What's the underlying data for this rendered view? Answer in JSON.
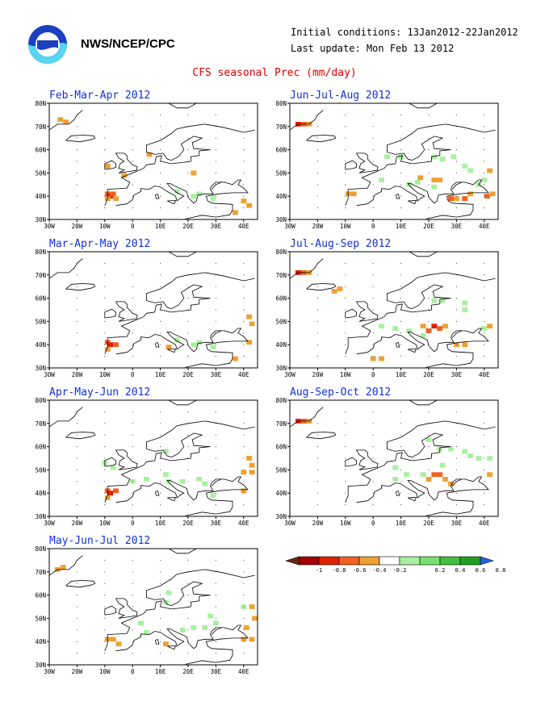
{
  "header": {
    "agency": "NWS/NCEP/CPC",
    "initial_conditions": "Initial conditions: 13Jan2012-22Jan2012",
    "last_update": "Last update: Mon Feb 13 2012",
    "title": "CFS seasonal Prec (mm/day)"
  },
  "colors": {
    "title": "#e00000",
    "panel_title": "#1030e0",
    "negative": [
      "#6b2a0c",
      "#a00000",
      "#e02000",
      "#f06020",
      "#f0a030"
    ],
    "positive": [
      "#a8f0a0",
      "#78e070",
      "#40c040",
      "#20a020",
      "#2060e0"
    ]
  },
  "chart_data": {
    "type": "heatmap",
    "variable": "Precipitation anomaly (mm/day)",
    "region": {
      "lon_range": [
        -30,
        45
      ],
      "lat_range": [
        30,
        80
      ],
      "x_tick_labels": [
        "30W",
        "20W",
        "10W",
        "0",
        "10E",
        "20E",
        "30E",
        "40E"
      ],
      "y_tick_labels": [
        "30N",
        "40N",
        "50N",
        "60N",
        "70N",
        "80N"
      ]
    },
    "colorbar": {
      "levels": [
        -1,
        -0.8,
        -0.6,
        -0.4,
        -0.2,
        0.2,
        0.4,
        0.6,
        0.8,
        1
      ],
      "labels": [
        "-1",
        "-0.8",
        "-0.6",
        "-0.4",
        "-0.2",
        "0.2",
        "0.4",
        "0.6",
        "0.8",
        "1"
      ]
    },
    "panels": [
      {
        "title": "Feb-Mar-Apr 2012",
        "column": 0,
        "row": 0,
        "cells": [
          [
            -26,
            73,
            "-0.3"
          ],
          [
            -24,
            72,
            "-0.3"
          ],
          [
            -9,
            41,
            "-0.5"
          ],
          [
            -8,
            40,
            "-0.7"
          ],
          [
            -7,
            41,
            "-0.5"
          ],
          [
            -9,
            39,
            "-0.3"
          ],
          [
            -6,
            39,
            "-0.3"
          ],
          [
            -9,
            53,
            "-0.3"
          ],
          [
            -3,
            49,
            "-0.3"
          ],
          [
            6,
            58,
            "-0.3"
          ],
          [
            22,
            50,
            "-0.3"
          ],
          [
            40,
            38,
            "-0.3"
          ],
          [
            42,
            36,
            "-0.3"
          ],
          [
            37,
            33,
            "-0.3"
          ],
          [
            22,
            40,
            "0.3"
          ],
          [
            24,
            41,
            "0.3"
          ],
          [
            29,
            39,
            "0.3"
          ],
          [
            16,
            42,
            "0.3"
          ]
        ]
      },
      {
        "title": "Jun-Jul-Aug 2012",
        "column": 1,
        "row": 0,
        "cells": [
          [
            -27,
            71,
            "-0.7"
          ],
          [
            -25,
            71,
            "-0.5"
          ],
          [
            -23,
            71,
            "-0.3"
          ],
          [
            -9,
            41,
            "-0.3"
          ],
          [
            -7,
            41,
            "-0.3"
          ],
          [
            28,
            39,
            "-0.5"
          ],
          [
            30,
            39,
            "-0.3"
          ],
          [
            33,
            39,
            "-0.5"
          ],
          [
            35,
            41,
            "-0.3"
          ],
          [
            41,
            40,
            "-0.5"
          ],
          [
            43,
            41,
            "-0.3"
          ],
          [
            42,
            51,
            "-0.3"
          ],
          [
            22,
            47,
            "-0.3"
          ],
          [
            24,
            47,
            "-0.3"
          ],
          [
            17,
            48,
            "-0.3"
          ],
          [
            5,
            57,
            "0.3"
          ],
          [
            10,
            57,
            "0.3"
          ],
          [
            22,
            57,
            "0.3"
          ],
          [
            25,
            56,
            "0.3"
          ],
          [
            29,
            57,
            "0.3"
          ],
          [
            33,
            53,
            "0.3"
          ],
          [
            35,
            51,
            "0.3"
          ],
          [
            3,
            47,
            "0.3"
          ],
          [
            13,
            45,
            "0.3"
          ],
          [
            16,
            46,
            "0.3"
          ],
          [
            22,
            44,
            "0.3"
          ],
          [
            40,
            47,
            "0.3"
          ],
          [
            38,
            45,
            "0.3"
          ]
        ]
      },
      {
        "title": "Mar-Apr-May 2012",
        "column": 0,
        "row": 1,
        "cells": [
          [
            -9,
            41,
            "-0.5"
          ],
          [
            -8,
            40,
            "-0.7"
          ],
          [
            -6,
            40,
            "-0.5"
          ],
          [
            -9,
            38,
            "-0.3"
          ],
          [
            13,
            39,
            "-0.3"
          ],
          [
            42,
            52,
            "-0.3"
          ],
          [
            43,
            49,
            "-0.3"
          ],
          [
            42,
            41,
            "-0.3"
          ],
          [
            37,
            34,
            "-0.3"
          ],
          [
            22,
            40,
            "0.3"
          ],
          [
            24,
            41,
            "0.3"
          ],
          [
            29,
            39,
            "0.3"
          ],
          [
            16,
            42,
            "0.3"
          ]
        ]
      },
      {
        "title": "Jul-Aug-Sep 2012",
        "column": 1,
        "row": 1,
        "cells": [
          [
            -27,
            71,
            "-0.7"
          ],
          [
            -25,
            71,
            "-0.5"
          ],
          [
            -23,
            71,
            "-0.3"
          ],
          [
            -14,
            63,
            "-0.3"
          ],
          [
            -12,
            64,
            "-0.3"
          ],
          [
            22,
            48,
            "-0.7"
          ],
          [
            24,
            47,
            "-0.5"
          ],
          [
            20,
            46,
            "-0.5"
          ],
          [
            26,
            48,
            "-0.3"
          ],
          [
            18,
            48,
            "-0.3"
          ],
          [
            30,
            40,
            "-0.3"
          ],
          [
            33,
            40,
            "-0.3"
          ],
          [
            42,
            48,
            "-0.3"
          ],
          [
            3,
            34,
            "-0.3"
          ],
          [
            0,
            34,
            "-0.3"
          ],
          [
            22,
            59,
            "0.3"
          ],
          [
            25,
            59,
            "0.3"
          ],
          [
            33,
            58,
            "0.3"
          ],
          [
            33,
            55,
            "0.3"
          ],
          [
            3,
            48,
            "0.3"
          ],
          [
            8,
            47,
            "0.3"
          ],
          [
            13,
            46,
            "0.3"
          ],
          [
            18,
            44,
            "0.3"
          ],
          [
            40,
            47,
            "0.3"
          ]
        ]
      },
      {
        "title": "Apr-May-Jun 2012",
        "column": 0,
        "row": 2,
        "cells": [
          [
            -9,
            41,
            "-0.5"
          ],
          [
            -8,
            40,
            "-0.7"
          ],
          [
            -6,
            41,
            "-0.5"
          ],
          [
            -9,
            38,
            "-0.3"
          ],
          [
            42,
            55,
            "-0.3"
          ],
          [
            43,
            52,
            "-0.3"
          ],
          [
            40,
            49,
            "-0.3"
          ],
          [
            43,
            49,
            "-0.3"
          ],
          [
            40,
            41,
            "-0.3"
          ],
          [
            12,
            58,
            "0.3"
          ],
          [
            -10,
            53,
            "0.3"
          ],
          [
            -7,
            51,
            "0.3"
          ],
          [
            0,
            45,
            "0.3"
          ],
          [
            5,
            46,
            "0.3"
          ],
          [
            12,
            48,
            "0.3"
          ],
          [
            13,
            45,
            "0.3"
          ],
          [
            18,
            45,
            "0.3"
          ],
          [
            26,
            44,
            "0.3"
          ],
          [
            29,
            39,
            "0.3"
          ],
          [
            24,
            46,
            "0.3"
          ]
        ]
      },
      {
        "title": "Aug-Sep-Oct 2012",
        "column": 1,
        "row": 2,
        "cells": [
          [
            -27,
            71,
            "-0.7"
          ],
          [
            -25,
            71,
            "-0.5"
          ],
          [
            -23,
            71,
            "-0.3"
          ],
          [
            22,
            48,
            "-0.5"
          ],
          [
            24,
            48,
            "-0.5"
          ],
          [
            20,
            46,
            "-0.3"
          ],
          [
            26,
            46,
            "-0.3"
          ],
          [
            42,
            48,
            "-0.3"
          ],
          [
            28,
            44,
            "-0.3"
          ],
          [
            20,
            63,
            "0.3"
          ],
          [
            24,
            59,
            "0.3"
          ],
          [
            28,
            59,
            "0.3"
          ],
          [
            33,
            58,
            "0.3"
          ],
          [
            35,
            56,
            "0.3"
          ],
          [
            38,
            55,
            "0.3"
          ],
          [
            42,
            55,
            "0.3"
          ],
          [
            8,
            51,
            "0.3"
          ],
          [
            12,
            48,
            "0.3"
          ],
          [
            18,
            48,
            "0.3"
          ],
          [
            25,
            52,
            "0.3"
          ],
          [
            8,
            46,
            "0.3"
          ]
        ]
      },
      {
        "title": "May-Jun-Jul 2012",
        "column": 0,
        "row": 3,
        "cells": [
          [
            -27,
            71,
            "-0.3"
          ],
          [
            -25,
            72,
            "-0.3"
          ],
          [
            -9,
            41,
            "-0.3"
          ],
          [
            -7,
            41,
            "-0.3"
          ],
          [
            -5,
            39,
            "-0.3"
          ],
          [
            43,
            55,
            "-0.3"
          ],
          [
            44,
            50,
            "-0.3"
          ],
          [
            41,
            46,
            "-0.3"
          ],
          [
            43,
            41,
            "-0.3"
          ],
          [
            40,
            41,
            "-0.3"
          ],
          [
            12,
            39,
            "-0.3"
          ],
          [
            12,
            57,
            "0.3"
          ],
          [
            13,
            61,
            "0.3"
          ],
          [
            40,
            55,
            "0.3"
          ],
          [
            28,
            51,
            "0.3"
          ],
          [
            30,
            48,
            "0.3"
          ],
          [
            26,
            46,
            "0.3"
          ],
          [
            22,
            46,
            "0.3"
          ],
          [
            18,
            45,
            "0.3"
          ],
          [
            5,
            44,
            "0.3"
          ],
          [
            3,
            48,
            "0.3"
          ]
        ]
      }
    ]
  }
}
